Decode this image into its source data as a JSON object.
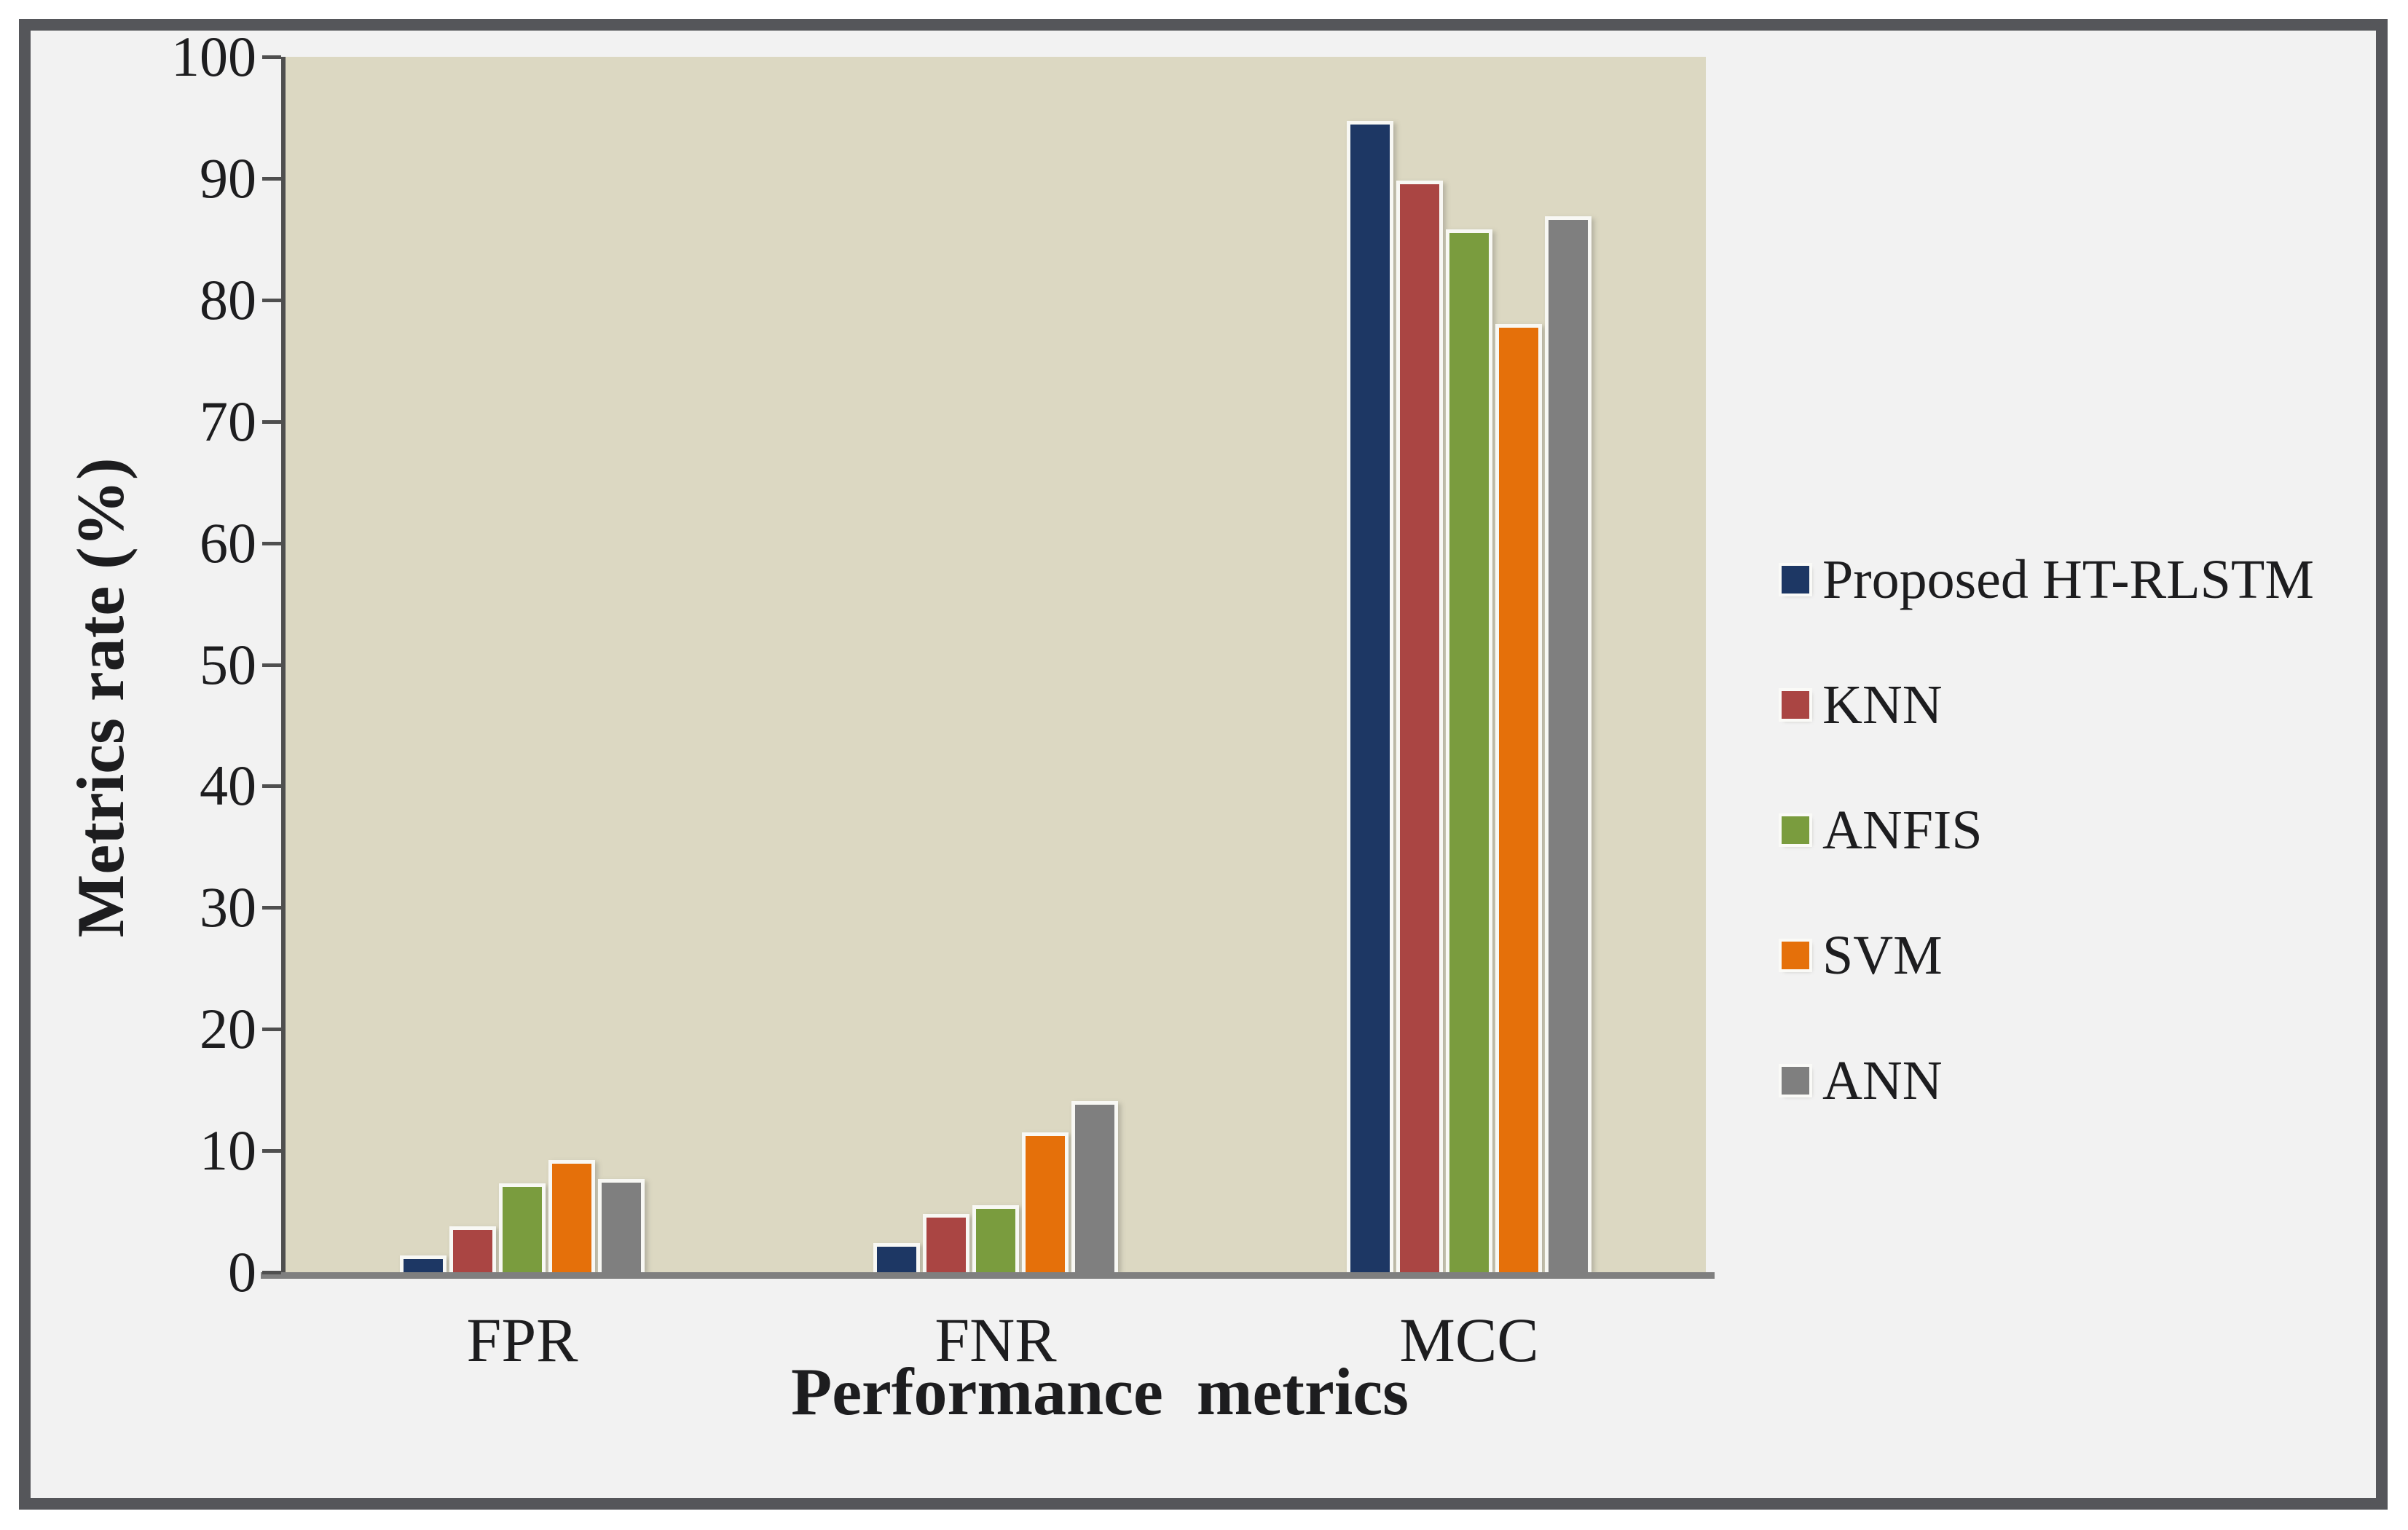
{
  "chart_data": {
    "type": "bar",
    "categories": [
      "FPR",
      "FNR",
      "MCC"
    ],
    "series": [
      {
        "name": "Proposed HT-RLSTM",
        "color": "#1d3764",
        "values": [
          1.4,
          2.4,
          94.7
        ]
      },
      {
        "name": "KNN",
        "color": "#aa4543",
        "values": [
          3.8,
          4.8,
          89.8
        ]
      },
      {
        "name": "ANFIS",
        "color": "#7a9c3e",
        "values": [
          7.3,
          5.5,
          85.8
        ]
      },
      {
        "name": "SVM",
        "color": "#e5700a",
        "values": [
          9.2,
          11.5,
          78.0
        ]
      },
      {
        "name": "ANN",
        "color": "#7f7f7f",
        "values": [
          7.7,
          14.1,
          86.9
        ]
      }
    ],
    "title": "",
    "xlabel": "Performance  metrics",
    "ylabel": "Metrics rate (%)",
    "ylim": [
      0,
      100
    ],
    "ytick_step": 10,
    "ytick_labels": [
      "0",
      "10",
      "20",
      "30",
      "40",
      "50",
      "60",
      "70",
      "80",
      "90",
      "100"
    ],
    "grid": false,
    "legend_position": "right",
    "colors": {
      "plot_background": "#dcd8c2",
      "outer_background": "#f2f2f2",
      "frame_border": "#55565a",
      "value_axis_line": "#4f4f4f",
      "category_axis_line": "#7f7f7f",
      "text": "#1d1d1f",
      "bar_outline": "#f8f8f4"
    }
  }
}
